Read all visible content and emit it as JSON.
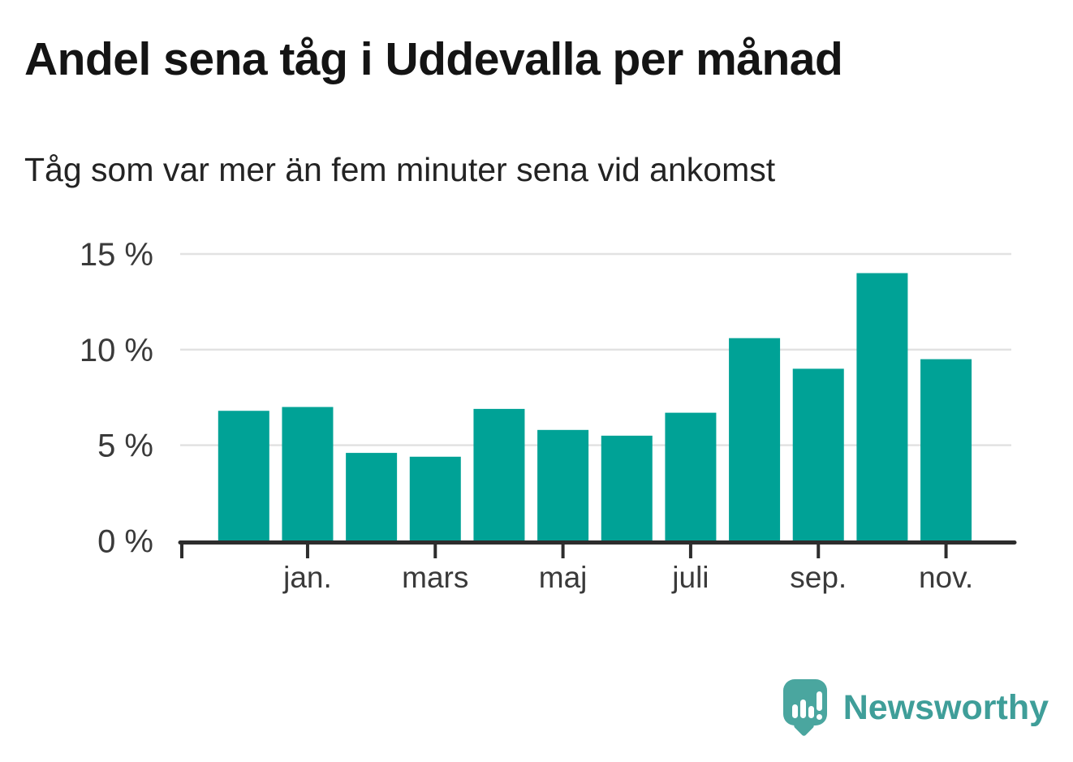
{
  "header": {
    "title": "Andel sena tåg i Uddevalla per månad",
    "subtitle": "Tåg som var mer än fem minuter sena vid ankomst"
  },
  "chart_data": {
    "type": "bar",
    "title": "Andel sena tåg i Uddevalla per månad",
    "subtitle": "Tåg som var mer än fem minuter sena vid ankomst",
    "categories": [
      "",
      "jan.",
      "",
      "mars",
      "",
      "maj",
      "",
      "juli",
      "",
      "sep.",
      "",
      "nov."
    ],
    "values": [
      6.8,
      7.0,
      4.6,
      4.4,
      6.9,
      5.8,
      5.5,
      6.7,
      10.6,
      9.0,
      14.0,
      9.5
    ],
    "unit": "%",
    "xlabel": "",
    "ylabel": "",
    "y_ticks": [
      0,
      5,
      10,
      15
    ],
    "y_tick_labels": [
      "0 %",
      "5 %",
      "10 %",
      "15 %"
    ],
    "ylim": [
      0,
      16
    ],
    "grid": true,
    "legend_position": "none",
    "bar_color": "#00a296",
    "grid_color": "#e2e2e2",
    "axis_color": "#2d2d2d",
    "label_color": "#3a3a3a"
  },
  "footer": {
    "brand": "Newsworthy",
    "brand_color": "#3f9e99",
    "icon_color": "#4aa69f",
    "icon_name": "newsworthy-speech-bubble-chart-icon"
  }
}
